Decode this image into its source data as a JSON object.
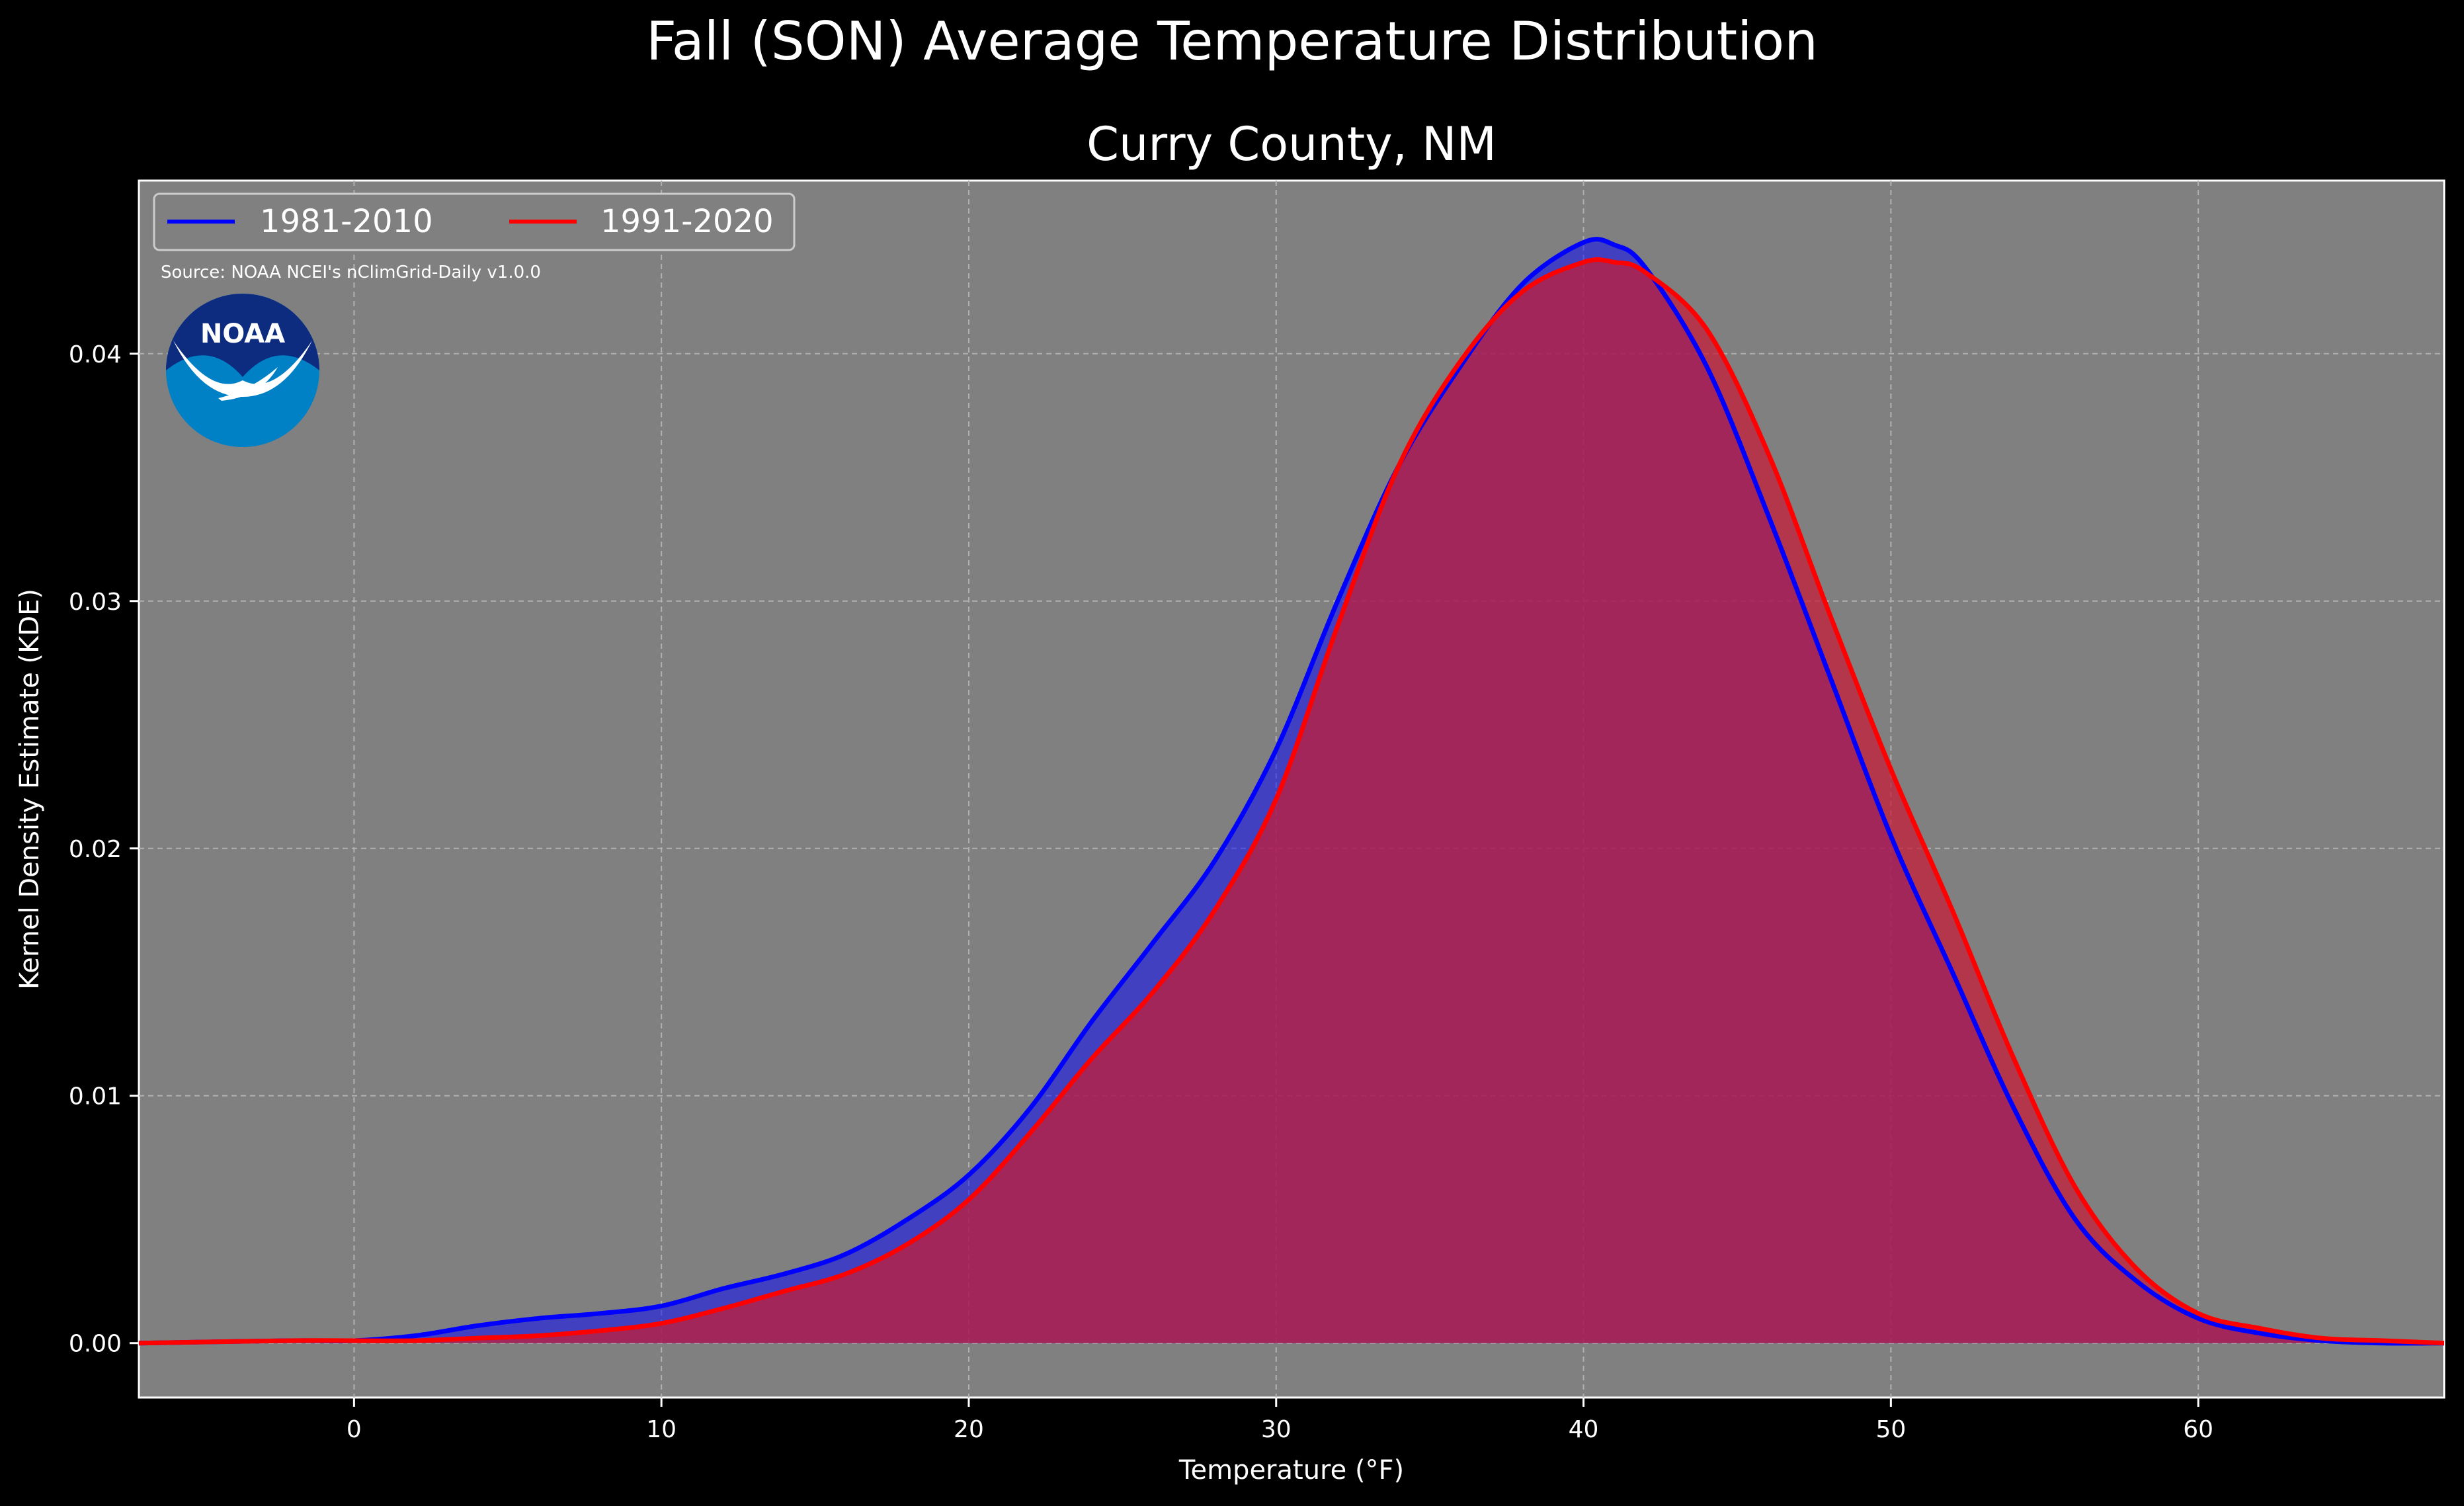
{
  "chart_data": {
    "type": "area",
    "title": "Fall (SON) Average Temperature Distribution",
    "subtitle": "Curry County, NM",
    "xlabel": "Temperature (°F)",
    "ylabel": "Kernel Density Estimate (KDE)",
    "xlim": [
      -7,
      68
    ],
    "ylim": [
      -0.0022,
      0.047
    ],
    "xticks": [
      0,
      10,
      20,
      30,
      40,
      50,
      60
    ],
    "yticks": [
      0.0,
      0.01,
      0.02,
      0.03,
      0.04
    ],
    "ytick_labels": [
      "0.00",
      "0.01",
      "0.02",
      "0.03",
      "0.04"
    ],
    "grid": true,
    "legend_placement": "top-left",
    "source": "Source: NOAA NCEI's nClimGrid-Daily v1.0.0",
    "logo_text": "NOAA",
    "colors": {
      "background": "#000000",
      "plot_bg": "#808080",
      "grid": "#b0b0b0"
    },
    "series": [
      {
        "name": "1981-2010",
        "color": "#0000ff",
        "fill": "rgba(0,0,255,0.5)",
        "x": [
          -7,
          -2,
          0,
          2,
          4,
          6,
          8,
          10,
          12,
          14,
          16,
          18,
          20,
          22,
          24,
          26,
          28,
          30,
          32,
          34,
          36,
          38,
          40,
          41,
          42,
          44,
          46,
          48,
          50,
          52,
          54,
          56,
          58,
          60,
          62,
          64,
          66,
          68
        ],
        "values": [
          0.0,
          0.0001,
          0.0001,
          0.0003,
          0.0007,
          0.001,
          0.0012,
          0.0015,
          0.0022,
          0.0028,
          0.0036,
          0.005,
          0.0068,
          0.0095,
          0.013,
          0.0162,
          0.0195,
          0.024,
          0.03,
          0.0355,
          0.0395,
          0.0428,
          0.0445,
          0.0444,
          0.0435,
          0.0395,
          0.0335,
          0.027,
          0.0205,
          0.015,
          0.0095,
          0.005,
          0.0025,
          0.001,
          0.0004,
          0.0001,
          0.0,
          0.0
        ]
      },
      {
        "name": "1991-2020",
        "color": "#ff0000",
        "fill": "rgba(196,30,58,0.75)",
        "x": [
          -7,
          -2,
          0,
          2,
          4,
          6,
          8,
          10,
          12,
          14,
          16,
          18,
          20,
          22,
          24,
          26,
          28,
          30,
          32,
          34,
          36,
          38,
          40,
          41,
          42,
          44,
          46,
          48,
          50,
          52,
          54,
          56,
          58,
          60,
          62,
          64,
          66,
          68
        ],
        "values": [
          0.0,
          0.0001,
          0.0001,
          0.0001,
          0.0002,
          0.0003,
          0.0005,
          0.0008,
          0.0014,
          0.0021,
          0.0028,
          0.004,
          0.0058,
          0.0085,
          0.0115,
          0.0142,
          0.0175,
          0.022,
          0.029,
          0.0355,
          0.0397,
          0.0425,
          0.0437,
          0.0437,
          0.0433,
          0.041,
          0.036,
          0.0295,
          0.0232,
          0.0175,
          0.0115,
          0.0063,
          0.003,
          0.0012,
          0.0006,
          0.0002,
          0.0001,
          0.0
        ]
      }
    ]
  }
}
